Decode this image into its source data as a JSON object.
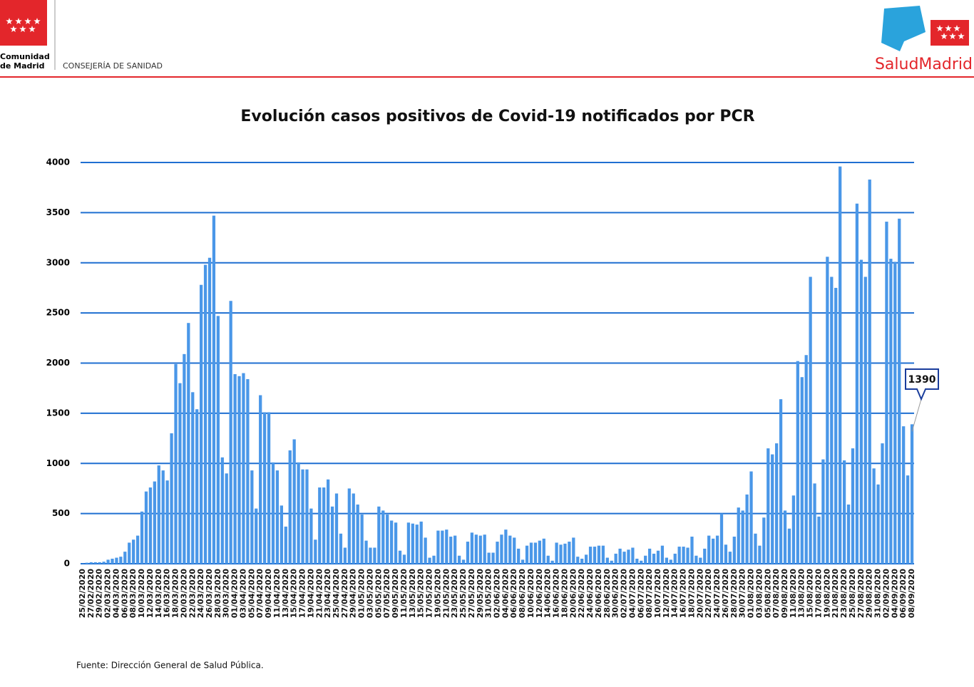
{
  "header": {
    "left_name": "Comunidad",
    "left_name2": "de Madrid",
    "department": "CONSEJERÍA DE SANIDAD",
    "right_brand": "SaludMadrid"
  },
  "chart_data": {
    "type": "bar",
    "title": "Evolución casos positivos de Covid-19 notificados por PCR",
    "color": "#4a97e8",
    "grid": true,
    "grid_color": "#1f6fd1",
    "categories": [
      "25/02/2020",
      null,
      "27/02/2020",
      null,
      "29/02/2020",
      null,
      "02/03/2020",
      null,
      "04/03/2020",
      null,
      "06/03/2020",
      null,
      "08/03/2020",
      null,
      "10/03/2020",
      null,
      "12/03/2020",
      null,
      "14/03/2020",
      null,
      "16/03/2020",
      null,
      "18/03/2020",
      null,
      "20/03/2020",
      null,
      "22/03/2020",
      null,
      "24/03/2020",
      null,
      "26/03/2020",
      null,
      "28/03/2020",
      null,
      "30/03/2020",
      null,
      "01/04/2020",
      null,
      "03/04/2020",
      null,
      "05/04/2020",
      null,
      "07/04/2020",
      null,
      "09/04/2020",
      null,
      "11/04/2020",
      null,
      "13/04/2020",
      null,
      "15/04/2020",
      null,
      "17/04/2020",
      null,
      "19/04/2020",
      null,
      "21/04/2020",
      null,
      "23/04/2020",
      null,
      "25/04/2020",
      null,
      "27/04/2020",
      null,
      "29/04/2020",
      null,
      "01/05/2020",
      null,
      "03/05/2020",
      null,
      "05/05/2020",
      null,
      "07/05/2020",
      null,
      "09/05/2020",
      null,
      "11/05/2020",
      null,
      "13/05/2020",
      null,
      "15/05/2020",
      null,
      "17/05/2020",
      null,
      "19/05/2020",
      null,
      "21/05/2020",
      null,
      "23/05/2020",
      null,
      "25/05/2020",
      null,
      "27/05/2020",
      null,
      "29/05/2020",
      null,
      "31/05/2020",
      null,
      "02/06/2020",
      null,
      "04/06/2020",
      null,
      "06/06/2020",
      null,
      "08/06/2020",
      null,
      "10/06/2020",
      null,
      "12/06/2020",
      null,
      "14/06/2020",
      null,
      "16/06/2020",
      null,
      "18/06/2020",
      null,
      "20/06/2020",
      null,
      "22/06/2020",
      null,
      "24/06/2020",
      null,
      "26/06/2020",
      null,
      "28/06/2020",
      null,
      "30/06/2020",
      null,
      "02/07/2020",
      null,
      "04/07/2020",
      null,
      "06/07/2020",
      null,
      "08/07/2020",
      null,
      "10/07/2020",
      null,
      "12/07/2020",
      null,
      "14/07/2020",
      null,
      "16/07/2020",
      null,
      "18/07/2020",
      null,
      "20/07/2020",
      null,
      "22/07/2020",
      null,
      "24/07/2020",
      null,
      "26/07/2020",
      null,
      "28/07/2020",
      null,
      "30/07/2020",
      null,
      "01/08/2020",
      null,
      "03/08/2020",
      null,
      "05/08/2020",
      null,
      "07/08/2020",
      null,
      "09/08/2020",
      null,
      "11/08/2020",
      null,
      "13/08/2020",
      null,
      "15/08/2020",
      null,
      "17/08/2020",
      null,
      "19/08/2020",
      null,
      "21/08/2020",
      null,
      "23/08/2020",
      null,
      "25/08/2020",
      null,
      "27/08/2020",
      null,
      "29/08/2020",
      null,
      "31/08/2020",
      null,
      "02/09/2020",
      null,
      "04/09/2020",
      null,
      "06/09/2020",
      null,
      "08/09/2020"
    ],
    "values": [
      2,
      10,
      15,
      15,
      15,
      20,
      40,
      50,
      60,
      70,
      120,
      210,
      240,
      280,
      520,
      720,
      760,
      820,
      980,
      930,
      830,
      1300,
      1990,
      1800,
      2090,
      2400,
      1710,
      1540,
      2780,
      2980,
      3050,
      3470,
      2470,
      1060,
      900,
      2620,
      1890,
      1870,
      1900,
      1840,
      930,
      550,
      1680,
      1510,
      1510,
      1010,
      930,
      580,
      370,
      1130,
      1240,
      1010,
      940,
      940,
      550,
      240,
      760,
      760,
      840,
      570,
      700,
      300,
      160,
      750,
      700,
      590,
      490,
      230,
      160,
      160,
      570,
      530,
      490,
      430,
      410,
      130,
      90,
      410,
      400,
      390,
      420,
      260,
      60,
      80,
      330,
      330,
      340,
      270,
      280,
      80,
      40,
      220,
      310,
      290,
      280,
      290,
      110,
      110,
      220,
      290,
      340,
      280,
      260,
      150,
      40,
      180,
      210,
      210,
      230,
      250,
      80,
      30,
      210,
      190,
      200,
      220,
      260,
      70,
      50,
      90,
      170,
      170,
      180,
      180,
      60,
      30,
      100,
      150,
      120,
      140,
      160,
      50,
      30,
      80,
      150,
      100,
      130,
      180,
      60,
      40,
      100,
      170,
      170,
      160,
      270,
      80,
      60,
      150,
      280,
      250,
      280,
      500,
      190,
      120,
      270,
      560,
      530,
      690,
      920,
      300,
      180,
      460,
      1150,
      1090,
      1200,
      1640,
      530,
      350,
      680,
      2020,
      1860,
      2080,
      2860,
      800,
      470,
      1040,
      3060,
      2860,
      2750,
      3960,
      1030,
      590,
      1150,
      3590,
      3030,
      2860,
      3830,
      950,
      790,
      1200,
      3410,
      3040,
      3010,
      3440,
      1370,
      880,
      1390
    ],
    "ylim": [
      0,
      4000
    ],
    "yticks": [
      0,
      500,
      1000,
      1500,
      2000,
      2500,
      3000,
      3500,
      4000
    ],
    "annotation_index": 196
  },
  "source": "Fuente: Dirección General de Salud Pública."
}
